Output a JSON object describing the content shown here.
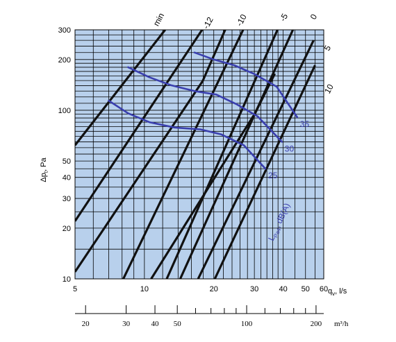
{
  "chart_data": {
    "type": "line",
    "title": "",
    "x_scale": "log",
    "y_scale": "log",
    "xlim": [
      5,
      60
    ],
    "ylim": [
      10,
      300
    ],
    "grid": true,
    "colors": {
      "plot_background": "#b8d0ec",
      "grid": "#000000",
      "pressure_lines": "#111111",
      "sound_curves": "#3a3fae"
    },
    "x_axis": {
      "label": "q",
      "label_subscript": "v",
      "unit": ", l/s",
      "ticks": [
        "5",
        "10",
        "20",
        "30",
        "40",
        "50",
        "60"
      ],
      "tick_values": [
        5,
        10,
        20,
        30,
        40,
        50,
        60
      ]
    },
    "secondary_x_axis": {
      "unit": "m³/h",
      "ticks": [
        "20",
        "30",
        "40",
        "50",
        "100",
        "200"
      ],
      "tick_values": [
        20,
        30,
        40,
        50,
        100,
        200
      ]
    },
    "y_axis": {
      "label": "Δp",
      "label_subscript": "t",
      "unit": ", Pa",
      "ticks": [
        "10",
        "20",
        "30",
        "40",
        "50",
        "100",
        "200",
        "300"
      ],
      "tick_values": [
        10,
        20,
        30,
        40,
        50,
        100,
        200,
        300
      ]
    },
    "pressure_lines": [
      {
        "label": "min",
        "points": [
          [
            5,
            62
          ],
          [
            12.3,
            300
          ]
        ]
      },
      {
        "label": "",
        "points": [
          [
            5,
            22
          ],
          [
            17.8,
            300
          ]
        ]
      },
      {
        "label": "-12",
        "points": [
          [
            5,
            11
          ],
          [
            17.9,
            149
          ],
          [
            22.4,
            300
          ]
        ]
      },
      {
        "label": "-10",
        "points": [
          [
            8.1,
            10
          ],
          [
            26.8,
            300
          ]
        ]
      },
      {
        "label": "",
        "points": [
          [
            10.7,
            10
          ],
          [
            30.2,
            96
          ],
          [
            36.8,
            165
          ]
        ]
      },
      {
        "label": "-5",
        "points": [
          [
            12.5,
            10
          ],
          [
            37.8,
            300
          ]
        ]
      },
      {
        "label": "0",
        "points": [
          [
            14.3,
            10
          ],
          [
            44.1,
            300
          ]
        ]
      },
      {
        "label": "5",
        "points": [
          [
            17.1,
            10
          ],
          [
            54.2,
            260
          ]
        ]
      },
      {
        "label": "10",
        "points": [
          [
            20.2,
            10
          ],
          [
            55.0,
            185
          ]
        ]
      }
    ],
    "sound_curves_title": "L",
    "sound_curves_title_subscript": "Pa4",
    "sound_curves_unit": ", dB(A)",
    "sound_curves": [
      {
        "label": "25",
        "points": [
          [
            7.0,
            114
          ],
          [
            8.5,
            96
          ],
          [
            10.5,
            85
          ],
          [
            13.5,
            79
          ],
          [
            17.5,
            77
          ],
          [
            21.5,
            72
          ],
          [
            27.0,
            62
          ],
          [
            33.5,
            45
          ]
        ]
      },
      {
        "label": "30",
        "points": [
          [
            8.5,
            180
          ],
          [
            10.5,
            157
          ],
          [
            13.0,
            141
          ],
          [
            16.5,
            130
          ],
          [
            20.5,
            124
          ],
          [
            25.0,
            109
          ],
          [
            31.0,
            92
          ],
          [
            39.5,
            65
          ]
        ]
      },
      {
        "label": "35",
        "points": [
          [
            16.5,
            220
          ],
          [
            20.0,
            200
          ],
          [
            24.5,
            185
          ],
          [
            30.0,
            164
          ],
          [
            37.5,
            138
          ],
          [
            46.0,
            91
          ]
        ]
      }
    ]
  }
}
